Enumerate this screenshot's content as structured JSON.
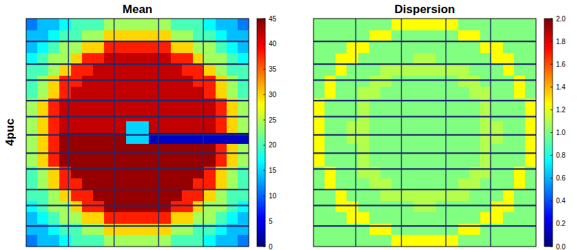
{
  "row_label": "4puc",
  "chart_data": [
    {
      "type": "heatmap",
      "title": "Mean",
      "tick_labels": false,
      "clim": [
        0,
        45
      ],
      "cticks": [
        0,
        5,
        10,
        15,
        20,
        25,
        30,
        35,
        40,
        45
      ],
      "cells": [
        [
          11,
          14,
          14,
          17,
          20,
          20,
          20,
          24,
          24,
          24,
          24,
          24,
          24,
          20,
          20,
          20,
          17,
          14,
          14,
          11
        ],
        [
          14,
          14,
          17,
          20,
          20,
          24,
          24,
          30,
          30,
          30,
          30,
          30,
          30,
          24,
          24,
          20,
          20,
          17,
          14,
          14
        ],
        [
          14,
          17,
          20,
          24,
          24,
          30,
          30,
          38,
          38,
          38,
          38,
          38,
          38,
          30,
          30,
          24,
          24,
          20,
          17,
          14
        ],
        [
          17,
          20,
          24,
          24,
          30,
          38,
          38,
          42,
          42,
          42,
          42,
          42,
          42,
          38,
          38,
          30,
          24,
          24,
          20,
          17
        ],
        [
          20,
          20,
          24,
          30,
          38,
          38,
          42,
          42,
          42,
          42,
          42,
          42,
          42,
          42,
          38,
          38,
          30,
          24,
          20,
          20
        ],
        [
          20,
          24,
          30,
          38,
          38,
          42,
          42,
          42,
          42,
          42,
          42,
          42,
          42,
          42,
          42,
          38,
          38,
          30,
          24,
          20
        ],
        [
          20,
          24,
          30,
          38,
          42,
          42,
          42,
          42,
          42,
          42,
          42,
          42,
          42,
          42,
          42,
          42,
          38,
          30,
          24,
          20
        ],
        [
          24,
          30,
          38,
          42,
          42,
          42,
          42,
          42,
          42,
          42,
          42,
          42,
          42,
          42,
          42,
          42,
          42,
          38,
          30,
          24
        ],
        [
          24,
          30,
          38,
          42,
          42,
          42,
          42,
          42,
          42,
          42,
          42,
          42,
          42,
          42,
          42,
          42,
          42,
          38,
          30,
          24
        ],
        [
          24,
          30,
          38,
          42,
          42,
          42,
          42,
          42,
          42,
          15,
          15,
          42,
          42,
          42,
          42,
          42,
          42,
          38,
          30,
          24
        ],
        [
          24,
          30,
          38,
          44,
          44,
          44,
          44,
          44,
          44,
          15,
          15,
          3,
          3,
          3,
          3,
          3,
          3,
          3,
          3,
          3
        ],
        [
          24,
          30,
          38,
          44,
          44,
          44,
          44,
          44,
          44,
          44,
          44,
          44,
          44,
          44,
          44,
          44,
          44,
          38,
          30,
          24
        ],
        [
          24,
          30,
          38,
          44,
          44,
          44,
          44,
          44,
          44,
          44,
          44,
          44,
          44,
          44,
          44,
          44,
          44,
          38,
          30,
          24
        ],
        [
          20,
          24,
          30,
          38,
          44,
          44,
          44,
          44,
          44,
          44,
          44,
          44,
          44,
          44,
          44,
          44,
          38,
          30,
          24,
          20
        ],
        [
          20,
          24,
          30,
          38,
          38,
          44,
          44,
          44,
          44,
          44,
          44,
          44,
          44,
          44,
          44,
          38,
          38,
          30,
          24,
          20
        ],
        [
          20,
          20,
          24,
          30,
          38,
          38,
          44,
          44,
          44,
          44,
          44,
          44,
          44,
          44,
          38,
          38,
          30,
          24,
          20,
          20
        ],
        [
          17,
          20,
          24,
          24,
          30,
          38,
          38,
          44,
          44,
          44,
          44,
          44,
          44,
          38,
          38,
          30,
          24,
          24,
          20,
          17
        ],
        [
          14,
          17,
          20,
          24,
          24,
          30,
          30,
          38,
          38,
          38,
          38,
          38,
          38,
          30,
          30,
          24,
          24,
          20,
          17,
          14
        ],
        [
          14,
          14,
          17,
          20,
          20,
          24,
          24,
          30,
          30,
          30,
          30,
          30,
          30,
          24,
          24,
          20,
          20,
          17,
          14,
          14
        ],
        [
          11,
          14,
          14,
          17,
          20,
          20,
          20,
          24,
          24,
          24,
          24,
          24,
          24,
          20,
          20,
          20,
          17,
          14,
          14,
          11
        ]
      ]
    },
    {
      "type": "heatmap",
      "title": "Dispersion",
      "tick_labels": false,
      "clim": [
        0,
        2
      ],
      "cticks": [
        {
          "value": 0,
          "label": "0.0"
        },
        0.2,
        0.4,
        0.6,
        0.8,
        {
          "value": 1,
          "label": "1.0"
        },
        1.2,
        1.4,
        1.6,
        1.8,
        {
          "value": 2,
          "label": "2.0"
        }
      ],
      "cells": [
        [
          1,
          1,
          1,
          1,
          1,
          1,
          1,
          1.25,
          1.25,
          1.25,
          1.25,
          1.25,
          1.25,
          1,
          1,
          1,
          1,
          1,
          1,
          1
        ],
        [
          1,
          1,
          1,
          1,
          1,
          1.25,
          1.25,
          1,
          1,
          1,
          1,
          1,
          1,
          1.25,
          1.25,
          1,
          1,
          1,
          1,
          1
        ],
        [
          1,
          1,
          1,
          1.25,
          1.25,
          1,
          1,
          1,
          1,
          1,
          1,
          1,
          1,
          1,
          1,
          1.25,
          1.25,
          1,
          1,
          1
        ],
        [
          1,
          1,
          1.25,
          1.25,
          1,
          1,
          1,
          1,
          1,
          1.1,
          1.1,
          1,
          1,
          1,
          1,
          1,
          1.25,
          1.25,
          1,
          1
        ],
        [
          1,
          1,
          1.25,
          1,
          1,
          1,
          1.1,
          1.1,
          1.1,
          1.1,
          1.1,
          1.1,
          1.1,
          1.1,
          1,
          1,
          1,
          1.25,
          1,
          1
        ],
        [
          1,
          1.25,
          1,
          1,
          1,
          1.1,
          1.1,
          1,
          1,
          1,
          1,
          1,
          1,
          1.1,
          1.1,
          1,
          1,
          1,
          1.25,
          1
        ],
        [
          1,
          1.25,
          1,
          1,
          1.1,
          1.1,
          1,
          1,
          1,
          1,
          1,
          1,
          1,
          1,
          1.1,
          1.1,
          1,
          1,
          1.25,
          1
        ],
        [
          1.25,
          1,
          1,
          1,
          1.1,
          1,
          1,
          1,
          1,
          1,
          1,
          1,
          1,
          1,
          1,
          1.1,
          1,
          1,
          1,
          1.25
        ],
        [
          1.25,
          1,
          1,
          1,
          1.1,
          1,
          1,
          1,
          1,
          1,
          1,
          1,
          1,
          1,
          1,
          1.1,
          1,
          1,
          1,
          1.25
        ],
        [
          1.25,
          1,
          1,
          1.1,
          1.1,
          1,
          1,
          1,
          1,
          1,
          1,
          1,
          1,
          1,
          1,
          1.1,
          1.1,
          1,
          1,
          1.25
        ],
        [
          1.25,
          1,
          1,
          1.1,
          1.1,
          1,
          1,
          1,
          1,
          1,
          1,
          1,
          1,
          1,
          1,
          1.1,
          1.1,
          1,
          1,
          1.25
        ],
        [
          1.25,
          1,
          1,
          1,
          1.1,
          1,
          1,
          1,
          1,
          1,
          1,
          1,
          1,
          1,
          1,
          1.1,
          1,
          1,
          1,
          1.25
        ],
        [
          1.25,
          1,
          1,
          1,
          1.1,
          1,
          1,
          1,
          1,
          1,
          1,
          1,
          1,
          1,
          1,
          1.1,
          1,
          1,
          1,
          1.25
        ],
        [
          1,
          1.25,
          1,
          1,
          1.1,
          1.1,
          1,
          1,
          1,
          1,
          1,
          1,
          1,
          1,
          1.1,
          1.1,
          1,
          1,
          1.25,
          1
        ],
        [
          1,
          1.25,
          1,
          1,
          1,
          1.1,
          1.1,
          1,
          1,
          1,
          1,
          1,
          1,
          1.1,
          1.1,
          1,
          1,
          1,
          1.25,
          1
        ],
        [
          1,
          1,
          1.25,
          1,
          1,
          1,
          1.1,
          1.1,
          1.1,
          1.1,
          1.1,
          1.1,
          1.1,
          1.1,
          1,
          1,
          1,
          1.25,
          1,
          1
        ],
        [
          1,
          1,
          1.25,
          1.25,
          1,
          1,
          1,
          1,
          1,
          1.1,
          1.1,
          1,
          1,
          1,
          1,
          1,
          1.25,
          1.25,
          1,
          1
        ],
        [
          1,
          1,
          1,
          1.25,
          1.25,
          1,
          1,
          1,
          1,
          1,
          1,
          1,
          1,
          1,
          1,
          1.25,
          1.25,
          1,
          1,
          1
        ],
        [
          1,
          1,
          1,
          1,
          1,
          1.25,
          1.25,
          1,
          1,
          1,
          1,
          1,
          1,
          1.25,
          1.25,
          1,
          1,
          1,
          1,
          1
        ],
        [
          1,
          1,
          1,
          1,
          1,
          1,
          1,
          1.25,
          1.25,
          1.25,
          1.25,
          1.25,
          1.25,
          1,
          1,
          1,
          1,
          1,
          1,
          1
        ]
      ]
    }
  ]
}
